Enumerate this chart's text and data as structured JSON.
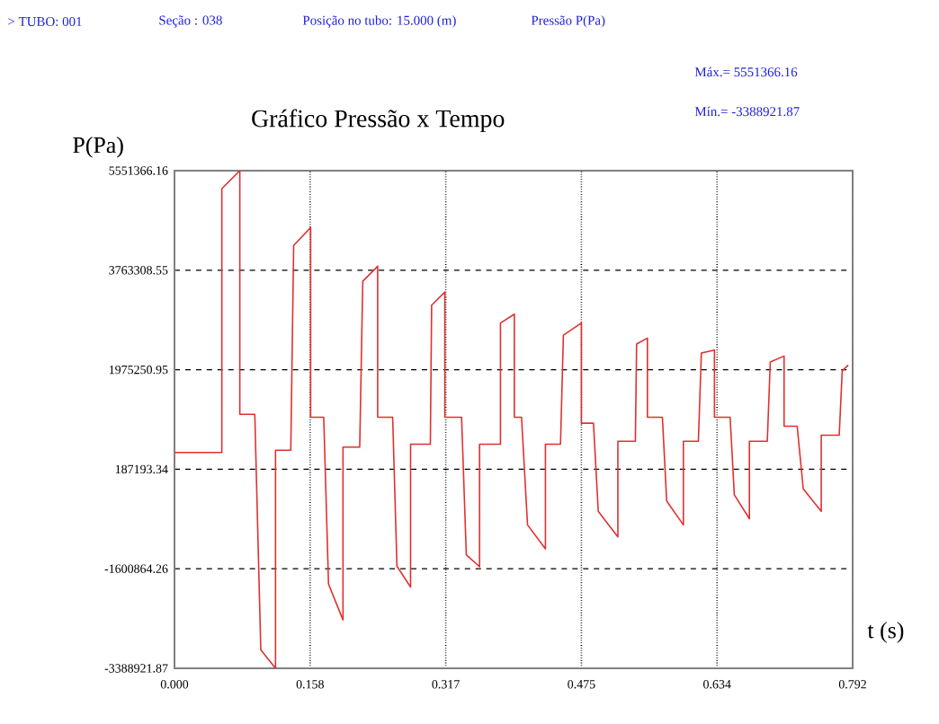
{
  "chart_data": {
    "type": "line",
    "title": "Gráfico Pressão x Tempo",
    "xlabel": "t (s)",
    "ylabel": "P(Pa)",
    "annotations": [
      "> TUBO: 001",
      "Seção : 038",
      "Posição no tubo: 15.000 (m)",
      "Pressão P(Pa)",
      "Máx.= 5551366.16",
      "Mín.= -3388921.87"
    ],
    "x": [
      0,
      0.0553,
      0.0553,
      0.0763,
      0.0763,
      0.0938,
      0.1008,
      0.118,
      0.118,
      0.1358,
      0.1392,
      0.159,
      0.159,
      0.1743,
      0.1799,
      0.1968,
      0.1968,
      0.2163,
      0.2199,
      0.2373,
      0.2373,
      0.2548,
      0.2598,
      0.2757,
      0.2757,
      0.2988,
      0.3003,
      0.3157,
      0.3157,
      0.3353,
      0.3408,
      0.3563,
      0.3563,
      0.3807,
      0.3807,
      0.3969,
      0.3969,
      0.4053,
      0.4123,
      0.4332,
      0.4332,
      0.4508,
      0.4542,
      0.4752,
      0.4752,
      0.4893,
      0.4949,
      0.5178,
      0.5178,
      0.5382,
      0.5397,
      0.5523,
      0.5523,
      0.5698,
      0.5748,
      0.5943,
      0.5943,
      0.6118,
      0.6153,
      0.6306,
      0.6306,
      0.6489,
      0.6538,
      0.6714,
      0.6714,
      0.6923,
      0.6958,
      0.7119,
      0.7119,
      0.7272,
      0.7343,
      0.7553,
      0.7553,
      0.7763,
      0.7798,
      0.7868
    ],
    "series": [
      {
        "color": "#e03030",
        "values": [
          487000,
          487000,
          5229000,
          5551366.16,
          1173000,
          1173000,
          -3057000,
          -3388921.87,
          529000,
          529000,
          4208000,
          4530000,
          1122000,
          1122000,
          -1875000,
          -2519000,
          584000,
          584000,
          3564000,
          3834000,
          1122000,
          1122000,
          -1553000,
          -1930000,
          638000,
          638000,
          3135000,
          3370000,
          1122000,
          1122000,
          -1350000,
          -1565000,
          638000,
          638000,
          2813000,
          2974000,
          1122000,
          1122000,
          -813000,
          -1243000,
          638000,
          638000,
          2597000,
          2813000,
          1014000,
          1014000,
          -569000,
          -1028000,
          691000,
          691000,
          2436000,
          2544000,
          1122000,
          1122000,
          -383000,
          -813000,
          691000,
          691000,
          2275000,
          2329000,
          1122000,
          1122000,
          -273000,
          -702000,
          691000,
          691000,
          2114000,
          2221000,
          961000,
          961000,
          -166000,
          -569000,
          799000,
          799000,
          1954000,
          2060000
        ]
      }
    ],
    "xlim": [
      0,
      0.792
    ],
    "ylim": [
      -3388921.87,
      5551366.16
    ],
    "xticks": [
      {
        "value": 0,
        "label": "0.000"
      },
      {
        "value": 0.1584,
        "label": "0.158"
      },
      {
        "value": 0.3168,
        "label": "0.317"
      },
      {
        "value": 0.4752,
        "label": "0.475"
      },
      {
        "value": 0.6336,
        "label": "0.634"
      },
      {
        "value": 0.792,
        "label": "0.792"
      }
    ],
    "yticks": [
      {
        "value": -3388921.87,
        "label": "-3388921.87"
      },
      {
        "value": -1600864.26,
        "label": "-1600864.26"
      },
      {
        "value": 187193.34,
        "label": "187193.34"
      },
      {
        "value": 1975250.95,
        "label": "1975250.95"
      },
      {
        "value": 3763308.55,
        "label": "3763308.55"
      },
      {
        "value": 5551366.16,
        "label": "5551366.16"
      }
    ],
    "grid": true,
    "marker": "none",
    "line_style": "solid"
  }
}
